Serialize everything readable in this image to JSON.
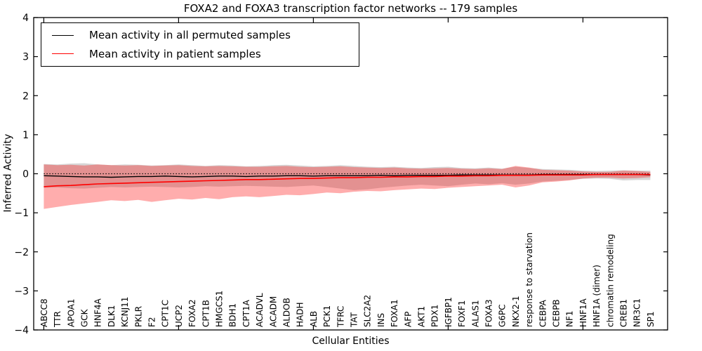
{
  "title": "FOXA2 and FOXA3 transcription factor networks -- 179 samples",
  "axes": {
    "x_label": "Cellular Entities",
    "y_label": "Inferred Activity"
  },
  "legend": {
    "entries": [
      {
        "label": "Mean activity in all permuted samples",
        "color": "#000000"
      },
      {
        "label": "Mean activity in patient samples",
        "color": "#ff0000"
      }
    ]
  },
  "chart_data": {
    "type": "line",
    "title": "FOXA2 and FOXA3 transcription factor networks -- 179 samples",
    "xlabel": "Cellular Entities",
    "ylabel": "Inferred Activity",
    "ylim": [
      -4,
      4
    ],
    "y_tick_values": [
      4,
      3,
      2,
      1,
      0,
      -1,
      -2,
      -3,
      -4
    ],
    "y_tick_labels": [
      "4",
      "3",
      "2",
      "1",
      "0",
      "−1",
      "−2",
      "−3",
      "−4"
    ],
    "grid": false,
    "legend_position": "upper left",
    "reference_line_y": 0,
    "top_axis_tick_indices": [
      0,
      10,
      20,
      30,
      40
    ],
    "categories": [
      "ABCC8",
      "TTR",
      "APOA1",
      "GCK",
      "HNF4A",
      "DLK1",
      "KCNJ11",
      "PKLR",
      "F2",
      "CPT1C",
      "UCP2",
      "FOXA2",
      "CPT1B",
      "HMGCS1",
      "BDH1",
      "CPT1A",
      "ACADVL",
      "ACADM",
      "ALDOB",
      "HADH",
      "ALB",
      "PCK1",
      "TFRC",
      "TAT",
      "SLC2A2",
      "INS",
      "FOXA1",
      "AFP",
      "AKT1",
      "PDX1",
      "IGFBP1",
      "FOXF1",
      "ALAS1",
      "FOXA3",
      "G6PC",
      "NKX2-1",
      "response to starvation",
      "CEBPA",
      "CEBPB",
      "NF1",
      "HNF1A",
      "HNF1A (dimer)",
      "chromatin remodeling",
      "CREB1",
      "NR3C1",
      "SP1"
    ],
    "series": [
      {
        "name": "Mean activity in all permuted samples",
        "color": "#000000",
        "style": "solid",
        "values": [
          -0.05,
          -0.06,
          -0.07,
          -0.08,
          -0.08,
          -0.09,
          -0.08,
          -0.07,
          -0.07,
          -0.06,
          -0.07,
          -0.08,
          -0.07,
          -0.06,
          -0.06,
          -0.07,
          -0.06,
          -0.06,
          -0.05,
          -0.05,
          -0.06,
          -0.05,
          -0.05,
          -0.05,
          -0.05,
          -0.04,
          -0.05,
          -0.04,
          -0.04,
          -0.04,
          -0.04,
          -0.03,
          -0.03,
          -0.03,
          -0.03,
          -0.03,
          -0.03,
          -0.02,
          -0.02,
          -0.02,
          -0.02,
          -0.02,
          -0.02,
          -0.02,
          -0.02,
          -0.03
        ]
      },
      {
        "name": "Mean activity in patient samples",
        "color": "#ff0000",
        "style": "solid",
        "values": [
          -0.33,
          -0.31,
          -0.3,
          -0.28,
          -0.26,
          -0.25,
          -0.24,
          -0.23,
          -0.22,
          -0.21,
          -0.2,
          -0.19,
          -0.18,
          -0.17,
          -0.16,
          -0.15,
          -0.15,
          -0.14,
          -0.13,
          -0.12,
          -0.12,
          -0.11,
          -0.1,
          -0.1,
          -0.09,
          -0.09,
          -0.08,
          -0.08,
          -0.07,
          -0.07,
          -0.06,
          -0.06,
          -0.05,
          -0.05,
          -0.04,
          -0.04,
          -0.04,
          -0.03,
          -0.03,
          -0.03,
          -0.03,
          -0.02,
          -0.02,
          -0.02,
          -0.02,
          -0.02
        ]
      }
    ],
    "bands": [
      {
        "name": "permuted samples range",
        "color": "#808080",
        "opacity": 0.32,
        "upper": [
          0.25,
          0.24,
          0.26,
          0.27,
          0.24,
          0.22,
          0.24,
          0.23,
          0.21,
          0.22,
          0.24,
          0.22,
          0.2,
          0.22,
          0.21,
          0.19,
          0.2,
          0.22,
          0.23,
          0.21,
          0.19,
          0.2,
          0.22,
          0.2,
          0.18,
          0.17,
          0.18,
          0.16,
          0.15,
          0.17,
          0.18,
          0.15,
          0.14,
          0.16,
          0.13,
          0.18,
          0.15,
          0.12,
          0.11,
          0.1,
          0.08,
          0.07,
          0.08,
          0.09,
          0.08,
          0.08
        ],
        "lower": [
          -0.36,
          -0.35,
          -0.37,
          -0.38,
          -0.36,
          -0.34,
          -0.35,
          -0.34,
          -0.33,
          -0.34,
          -0.35,
          -0.34,
          -0.32,
          -0.33,
          -0.32,
          -0.31,
          -0.32,
          -0.33,
          -0.34,
          -0.32,
          -0.3,
          -0.34,
          -0.38,
          -0.42,
          -0.4,
          -0.36,
          -0.33,
          -0.3,
          -0.28,
          -0.3,
          -0.32,
          -0.28,
          -0.25,
          -0.27,
          -0.24,
          -0.28,
          -0.25,
          -0.2,
          -0.18,
          -0.16,
          -0.13,
          -0.12,
          -0.13,
          -0.17,
          -0.16,
          -0.16
        ]
      },
      {
        "name": "patient samples range",
        "color": "#ff0000",
        "opacity": 0.32,
        "upper": [
          0.24,
          0.22,
          0.23,
          0.21,
          0.24,
          0.22,
          0.21,
          0.22,
          0.2,
          0.21,
          0.22,
          0.2,
          0.19,
          0.2,
          0.19,
          0.18,
          0.18,
          0.19,
          0.2,
          0.18,
          0.17,
          0.18,
          0.19,
          0.17,
          0.16,
          0.15,
          0.16,
          0.14,
          0.13,
          0.14,
          0.15,
          0.13,
          0.12,
          0.14,
          0.12,
          0.2,
          0.16,
          0.1,
          0.09,
          0.08,
          0.06,
          0.05,
          0.05,
          0.08,
          0.07,
          0.05
        ],
        "lower": [
          -0.9,
          -0.85,
          -0.8,
          -0.76,
          -0.72,
          -0.68,
          -0.7,
          -0.67,
          -0.72,
          -0.68,
          -0.64,
          -0.66,
          -0.62,
          -0.65,
          -0.6,
          -0.58,
          -0.6,
          -0.57,
          -0.54,
          -0.55,
          -0.52,
          -0.48,
          -0.5,
          -0.46,
          -0.44,
          -0.45,
          -0.42,
          -0.4,
          -0.38,
          -0.39,
          -0.36,
          -0.34,
          -0.32,
          -0.3,
          -0.28,
          -0.35,
          -0.3,
          -0.22,
          -0.2,
          -0.17,
          -0.12,
          -0.1,
          -0.1,
          -0.12,
          -0.11,
          -0.09
        ]
      }
    ]
  }
}
